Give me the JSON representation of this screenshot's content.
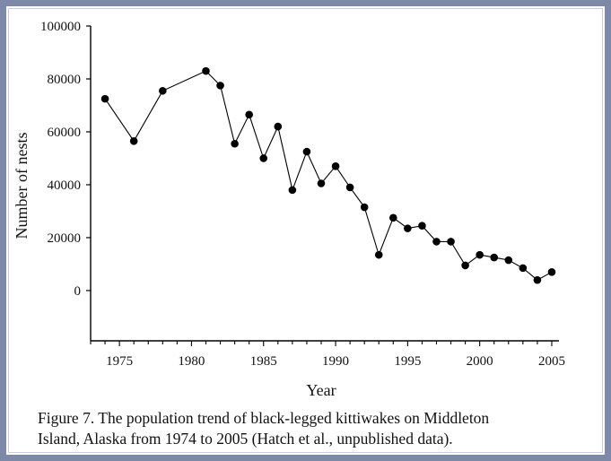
{
  "chart_data": {
    "type": "line",
    "title": "",
    "xlabel": "Year",
    "ylabel": "Number of nests",
    "xlim": [
      1973,
      2005.5
    ],
    "ylim": [
      -19000,
      100000
    ],
    "x_ticks": [
      1975,
      1980,
      1985,
      1990,
      1995,
      2000,
      2005
    ],
    "y_ticks": [
      0,
      20000,
      40000,
      60000,
      80000,
      100000
    ],
    "grid": false,
    "legend": "none",
    "marker": "filled-circle",
    "line_color": "#000000",
    "series": [
      {
        "x": [
          1974,
          1976,
          1978,
          1981,
          1982,
          1983,
          1984,
          1985,
          1986,
          1987,
          1988,
          1989,
          1990,
          1991,
          1992,
          1993,
          1994,
          1995,
          1996,
          1997,
          1998,
          1999,
          2000,
          2001,
          2002,
          2003,
          2004,
          2005
        ],
        "y": [
          72500,
          56500,
          75500,
          83000,
          77500,
          55500,
          66500,
          50000,
          62000,
          38000,
          52500,
          40500,
          47000,
          39000,
          31500,
          13500,
          27500,
          23500,
          24500,
          18500,
          18500,
          9500,
          13500,
          12500,
          11500,
          8500,
          4000,
          7000
        ]
      }
    ]
  },
  "caption": {
    "line1": "Figure 7.  The population trend of black-legged kittiwakes on Middleton",
    "line2": "Island, Alaska from 1974 to 2005 (Hatch et al., unpublished data)."
  },
  "colors": {
    "frame": "#7d89a6",
    "ink": "#000000"
  }
}
